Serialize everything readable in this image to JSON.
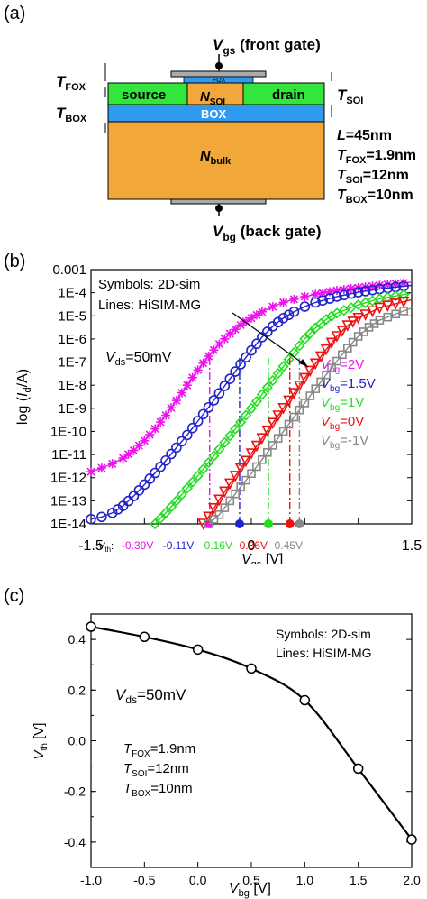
{
  "panel_a": {
    "label": "(a)",
    "vgs_main": "V",
    "vgs_sub": "gs",
    "vgs_suffix": " (front gate)",
    "tfox_main": "T",
    "tfox_sub": "FOX",
    "tbox_main": "T",
    "tbox_sub": "BOX",
    "tsoi_main": "T",
    "tsoi_sub": "SOI",
    "fox_text": "FOX",
    "source_text": "source",
    "nsoi_main": "N",
    "nsoi_sub": "SOI",
    "drain_text": "drain",
    "box_text": "BOX",
    "nbulk_main": "N",
    "nbulk_sub": "bulk",
    "vbg_main": "V",
    "vbg_sub": "bg",
    "vbg_suffix": " (back gate)",
    "params": [
      {
        "main": "L",
        "sub": "",
        "rest": "=45nm"
      },
      {
        "main": "T",
        "sub": "FOX",
        "rest": "=1.9nm"
      },
      {
        "main": "T",
        "sub": "SOI",
        "rest": "=12nm"
      },
      {
        "main": "T",
        "sub": "BOX",
        "rest": "=10nm"
      }
    ],
    "colors": {
      "green": "#33e63d",
      "blue": "#2f9bf0",
      "orange": "#f2a73a",
      "gate": "#999999"
    }
  },
  "panel_b": {
    "label": "(b)",
    "legend_symbols": "Symbols: 2D-sim",
    "legend_lines": "Lines: HiSIM-MG",
    "vds_main": "V",
    "vds_sub": "ds",
    "vds_rest": "=50mV",
    "vth_main": "V",
    "vth_sub": "th",
    "vth_colon": ":",
    "ylabel_pre": "log (",
    "ylabel_i": "I",
    "ylabel_sub": "d",
    "ylabel_post": "/A)",
    "xlabel_main": "V",
    "xlabel_sub": "gs",
    "xlabel_rest": " [V]",
    "xticks": [
      "-1.5",
      "0",
      "1.5"
    ],
    "yticks": [
      "0.001",
      "1E-4",
      "1E-5",
      "1E-6",
      "1E-7",
      "1E-8",
      "1E-9",
      "1E-10",
      "1E-11",
      "1E-12",
      "1E-13",
      "1E-14"
    ]
  },
  "panel_c": {
    "label": "(c)",
    "legend_symbols": "Symbols: 2D-sim",
    "legend_lines": "Lines: HiSIM-MG",
    "vds_main": "V",
    "vds_sub": "ds",
    "vds_rest": "=50mV",
    "params": [
      {
        "main": "T",
        "sub": "FOX",
        "rest": "=1.9nm"
      },
      {
        "main": "T",
        "sub": "SOI",
        "rest": "=12nm"
      },
      {
        "main": "T",
        "sub": "BOX",
        "rest": "=10nm"
      }
    ],
    "ylabel_main": "V",
    "ylabel_sub": "th",
    "ylabel_rest": " [V]",
    "xlabel_main": "V",
    "xlabel_sub": "bg",
    "xlabel_rest": " [V]",
    "xticks": [
      "-1.0",
      "-0.5",
      "0.0",
      "0.5",
      "1.0",
      "1.5",
      "2.0"
    ],
    "yticks": [
      "0.4",
      "0.2",
      "0.0",
      "-0.2",
      "-0.4"
    ]
  },
  "chart_data": [
    {
      "type": "line",
      "xlim": [
        -1.5,
        1.5
      ],
      "ylim_log10": [
        -14,
        -3
      ],
      "ylog": true,
      "series": [
        {
          "label_main": "V",
          "label_sub": "bg",
          "label_rest": "=2V",
          "color": "#ee11ee",
          "marker": "star",
          "vth": -0.39,
          "vth_text": "-0.39V",
          "points": [
            [
              -1.5,
              1.8e-12
            ],
            [
              -1.4,
              2.6e-12
            ],
            [
              -1.3,
              4e-12
            ],
            [
              -1.2,
              7e-12
            ],
            [
              -1.1,
              1.5e-11
            ],
            [
              -1.0,
              4e-11
            ],
            [
              -0.9,
              1.3e-10
            ],
            [
              -0.8,
              5e-10
            ],
            [
              -0.7,
              2.2e-09
            ],
            [
              -0.6,
              1e-08
            ],
            [
              -0.5,
              4.5e-08
            ],
            [
              -0.4,
              1.8e-07
            ],
            [
              -0.3,
              6e-07
            ],
            [
              -0.2,
              1.7e-06
            ],
            [
              -0.1,
              4e-06
            ],
            [
              0.0,
              8e-06
            ],
            [
              0.1,
              1.5e-05
            ],
            [
              0.2,
              2.5e-05
            ],
            [
              0.3,
              3.8e-05
            ],
            [
              0.4,
              5.2e-05
            ],
            [
              0.5,
              6.8e-05
            ],
            [
              0.6,
              8.6e-05
            ],
            [
              0.8,
              0.000125
            ],
            [
              1.0,
              0.000165
            ],
            [
              1.2,
              0.00021
            ],
            [
              1.5,
              0.00029
            ]
          ]
        },
        {
          "label_main": "V",
          "label_sub": "bg",
          "label_rest": "=1.5V",
          "color": "#2222cc",
          "marker": "circle",
          "vth": -0.11,
          "vth_text": "-0.11V",
          "points": [
            [
              -1.5,
              1.6e-14
            ],
            [
              -1.4,
              2e-14
            ],
            [
              -1.3,
              3e-14
            ],
            [
              -1.2,
              6e-14
            ],
            [
              -1.1,
              1.6e-13
            ],
            [
              -1.0,
              5e-13
            ],
            [
              -0.9,
              1.6e-12
            ],
            [
              -0.8,
              5.5e-12
            ],
            [
              -0.7,
              2e-11
            ],
            [
              -0.6,
              7e-11
            ],
            [
              -0.5,
              2.8e-10
            ],
            [
              -0.4,
              1.1e-09
            ],
            [
              -0.3,
              4.5e-09
            ],
            [
              -0.2,
              1.9e-08
            ],
            [
              -0.1,
              8e-08
            ],
            [
              0.0,
              3.2e-07
            ],
            [
              0.1,
              1.2e-06
            ],
            [
              0.2,
              3.5e-06
            ],
            [
              0.3,
              8e-06
            ],
            [
              0.4,
              1.5e-05
            ],
            [
              0.5,
              2.5e-05
            ],
            [
              0.6,
              3.8e-05
            ],
            [
              0.8,
              6.8e-05
            ],
            [
              1.0,
              0.000105
            ],
            [
              1.2,
              0.000145
            ],
            [
              1.5,
              0.00021
            ]
          ]
        },
        {
          "label_main": "V",
          "label_sub": "bg",
          "label_rest": "=1V",
          "color": "#22dd22",
          "marker": "diamond",
          "vth": 0.16,
          "vth_text": "0.16V",
          "points": [
            [
              -0.9,
              1e-14
            ],
            [
              -0.8,
              3e-14
            ],
            [
              -0.7,
              1e-13
            ],
            [
              -0.6,
              3.5e-13
            ],
            [
              -0.5,
              1.2e-12
            ],
            [
              -0.4,
              4.5e-12
            ],
            [
              -0.3,
              1.7e-11
            ],
            [
              -0.2,
              6.5e-11
            ],
            [
              -0.1,
              2.5e-10
            ],
            [
              0.0,
              1e-09
            ],
            [
              0.1,
              4e-09
            ],
            [
              0.2,
              1.6e-08
            ],
            [
              0.3,
              6.5e-08
            ],
            [
              0.4,
              2.6e-07
            ],
            [
              0.5,
              1e-06
            ],
            [
              0.6,
              3e-06
            ],
            [
              0.7,
              7e-06
            ],
            [
              0.8,
              1.3e-05
            ],
            [
              1.0,
              3e-05
            ],
            [
              1.2,
              5.5e-05
            ],
            [
              1.5,
              9.5e-05
            ]
          ]
        },
        {
          "label_main": "V",
          "label_sub": "bg",
          "label_rest": "=0V",
          "color": "#ee1111",
          "marker": "triangle",
          "vth": 0.36,
          "vth_text": "0.36V",
          "points": [
            [
              -0.45,
              1e-14
            ],
            [
              -0.4,
              2e-14
            ],
            [
              -0.3,
              1.1e-13
            ],
            [
              -0.2,
              5.5e-13
            ],
            [
              -0.1,
              2.5e-12
            ],
            [
              0.0,
              1.1e-11
            ],
            [
              0.1,
              5e-11
            ],
            [
              0.2,
              2.3e-10
            ],
            [
              0.3,
              1e-09
            ],
            [
              0.4,
              4.5e-09
            ],
            [
              0.5,
              2e-08
            ],
            [
              0.6,
              8.5e-08
            ],
            [
              0.7,
              3.5e-07
            ],
            [
              0.8,
              1.3e-06
            ],
            [
              0.9,
              3.8e-06
            ],
            [
              1.0,
              8e-06
            ],
            [
              1.2,
              2.2e-05
            ],
            [
              1.5,
              5e-05
            ]
          ]
        },
        {
          "label_main": "V",
          "label_sub": "bg",
          "label_rest": "=-1V",
          "color": "#888888",
          "marker": "square",
          "vth": 0.45,
          "vth_text": "0.45V",
          "points": [
            [
              -0.4,
              1e-14
            ],
            [
              -0.3,
              2.5e-14
            ],
            [
              -0.2,
              1e-13
            ],
            [
              -0.1,
              4e-13
            ],
            [
              0.0,
              1.5e-12
            ],
            [
              0.1,
              6e-12
            ],
            [
              0.2,
              2.5e-11
            ],
            [
              0.3,
              1e-10
            ],
            [
              0.4,
              4.2e-10
            ],
            [
              0.5,
              1.7e-09
            ],
            [
              0.6,
              7e-09
            ],
            [
              0.7,
              2.8e-08
            ],
            [
              0.8,
              1.1e-07
            ],
            [
              0.9,
              4e-07
            ],
            [
              1.0,
              1.3e-06
            ],
            [
              1.1,
              3.2e-06
            ],
            [
              1.2,
              6.5e-06
            ],
            [
              1.5,
              2.2e-05
            ]
          ]
        }
      ]
    },
    {
      "type": "line",
      "xlim": [
        -1.0,
        2.0
      ],
      "ylim": [
        -0.5,
        0.5
      ],
      "series": [
        {
          "color": "#000000",
          "points": [
            [
              -1.0,
              0.45
            ],
            [
              -0.5,
              0.41
            ],
            [
              0.0,
              0.36
            ],
            [
              0.5,
              0.285
            ],
            [
              1.0,
              0.16
            ],
            [
              1.5,
              -0.11
            ],
            [
              2.0,
              -0.39
            ]
          ]
        }
      ]
    }
  ]
}
